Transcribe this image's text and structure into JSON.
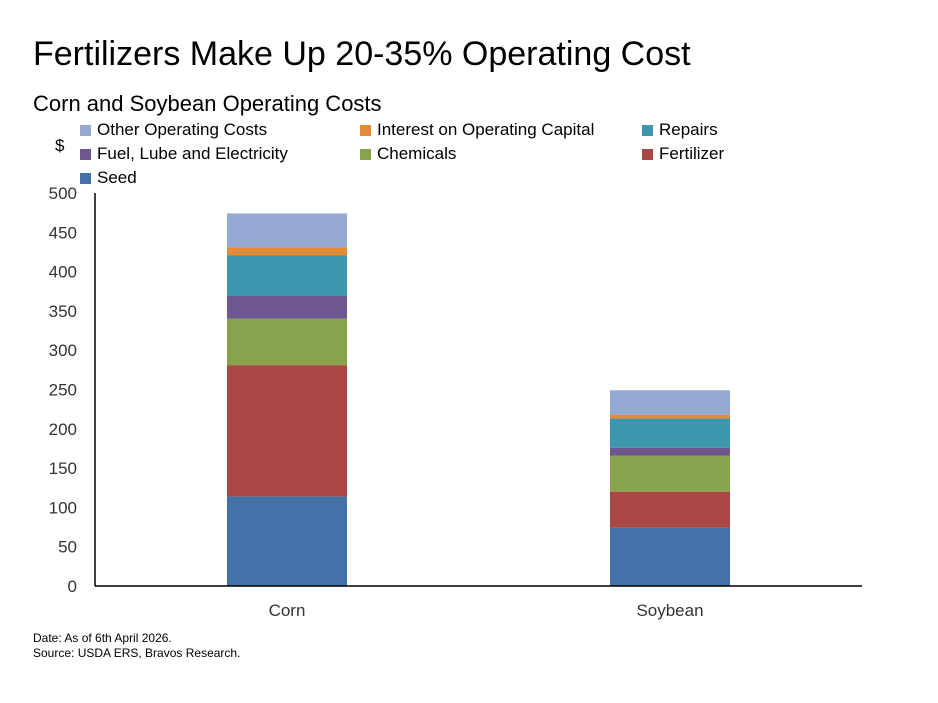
{
  "title": "Fertilizers Make Up 20-35% Operating Cost",
  "subtitle": "Corn and Soybean Operating Costs",
  "footer": {
    "date": "Date: As of 6th April 2026.",
    "source": "Source: USDA ERS, Bravos Research."
  },
  "chart_data": {
    "type": "bar",
    "stacked": true,
    "ylabel": "$",
    "ylim": [
      0,
      500
    ],
    "yticks": [
      0,
      50,
      100,
      150,
      200,
      250,
      300,
      350,
      400,
      450,
      500
    ],
    "grid": false,
    "legend_position": "top",
    "categories": [
      "Corn",
      "Soybean"
    ],
    "series": [
      {
        "name": "Seed",
        "color": "#4472A8",
        "values": [
          114,
          74
        ]
      },
      {
        "name": "Fertilizer",
        "color": "#A94744",
        "values": [
          167,
          46
        ]
      },
      {
        "name": "Chemicals",
        "color": "#87A34C",
        "values": [
          59,
          46
        ]
      },
      {
        "name": "Fuel, Lube and Electricity",
        "color": "#6E568F",
        "values": [
          29,
          10
        ]
      },
      {
        "name": "Repairs",
        "color": "#3D97AC",
        "values": [
          52,
          37
        ]
      },
      {
        "name": "Interest on Operating Capital",
        "color": "#E58A37",
        "values": [
          10,
          5
        ]
      },
      {
        "name": "Other Operating Costs",
        "color": "#94A9D4",
        "values": [
          43,
          31
        ]
      }
    ],
    "legend_order": [
      "Other Operating Costs",
      "Interest on Operating Capital",
      "Repairs",
      "Fuel, Lube and Electricity",
      "Chemicals",
      "Fertilizer",
      "Seed"
    ]
  }
}
